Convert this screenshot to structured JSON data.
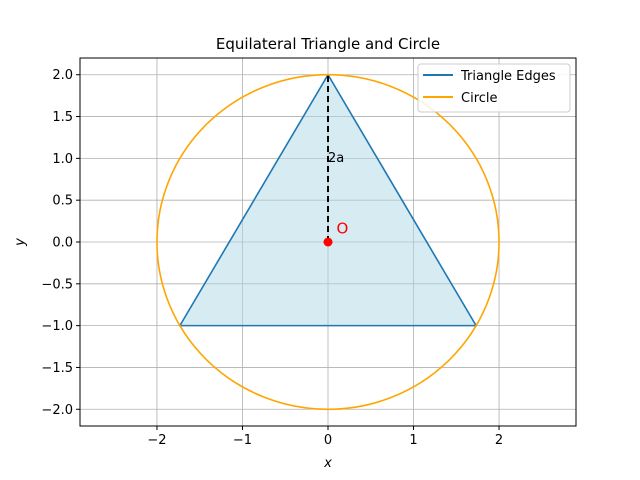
{
  "chart_data": {
    "type": "line",
    "title": "Equilateral Triangle and Circle",
    "xlabel": "x",
    "ylabel": "y",
    "xlim": [
      -2.9,
      2.9
    ],
    "ylim": [
      -2.2,
      2.2
    ],
    "aspect": "equal",
    "grid": true,
    "legend_position": "top-right",
    "x_ticks": [
      -2,
      -1,
      0,
      1,
      2
    ],
    "x_tick_labels": [
      "−2",
      "−1",
      "0",
      "1",
      "2"
    ],
    "y_ticks": [
      2.0,
      1.5,
      1.0,
      0.5,
      0.0,
      -0.5,
      -1.0,
      -1.5,
      -2.0
    ],
    "y_tick_labels": [
      "2.0",
      "1.5",
      "1.0",
      "0.5",
      "0.0",
      "−0.5",
      "−1.0",
      "−1.5",
      "−2.0"
    ],
    "series": [
      {
        "name": "Triangle Edges",
        "color": "#1f77b4",
        "fill": "#add8e6",
        "points": [
          [
            0,
            2
          ],
          [
            1.732,
            -1
          ],
          [
            -1.732,
            -1
          ],
          [
            0,
            2
          ]
        ]
      },
      {
        "name": "Circle",
        "color": "#ffa500",
        "center": [
          0,
          0
        ],
        "radius": 2
      }
    ],
    "annotations": [
      {
        "kind": "dashed-segment",
        "from": [
          0,
          0
        ],
        "to": [
          0,
          2
        ],
        "color": "#000000"
      },
      {
        "kind": "text",
        "text": "2a",
        "at": [
          0,
          1
        ],
        "color": "#000000"
      },
      {
        "kind": "point",
        "at": [
          0,
          0
        ],
        "color": "#ff0000"
      },
      {
        "kind": "text",
        "text": "O",
        "at": [
          0.1,
          0.1
        ],
        "color": "#ff0000"
      }
    ]
  }
}
